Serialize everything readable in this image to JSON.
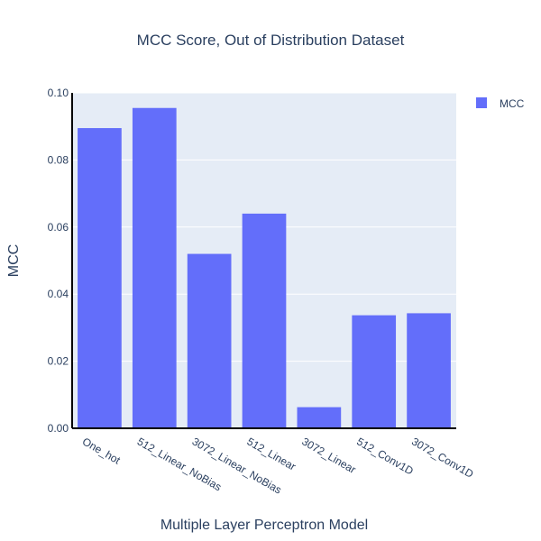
{
  "chart_data": {
    "type": "bar",
    "title": "MCC Score, Out of Distribution Dataset",
    "xlabel": "Multiple Layer Perceptron Model",
    "ylabel": "MCC",
    "categories": [
      "One_hot",
      "512_Linear_NoBias",
      "3072_Linear_NoBias",
      "512_Linear",
      "3072_Linear",
      "512_Conv1D",
      "3072_Conv1D"
    ],
    "series": [
      {
        "name": "MCC",
        "values": [
          0.0895,
          0.0955,
          0.052,
          0.064,
          0.0063,
          0.0337,
          0.0343
        ]
      }
    ],
    "ylim": [
      0,
      0.1
    ],
    "yticks": [
      "0.00",
      "0.02",
      "0.04",
      "0.06",
      "0.08",
      "0.10"
    ],
    "grid": true,
    "legend_position": "top-right",
    "colors": {
      "bar": "#636efa",
      "plot_bg": "#e5ecf6",
      "grid": "#ffffff",
      "text": "#2a3f5f",
      "axis_line": "#000000"
    }
  }
}
